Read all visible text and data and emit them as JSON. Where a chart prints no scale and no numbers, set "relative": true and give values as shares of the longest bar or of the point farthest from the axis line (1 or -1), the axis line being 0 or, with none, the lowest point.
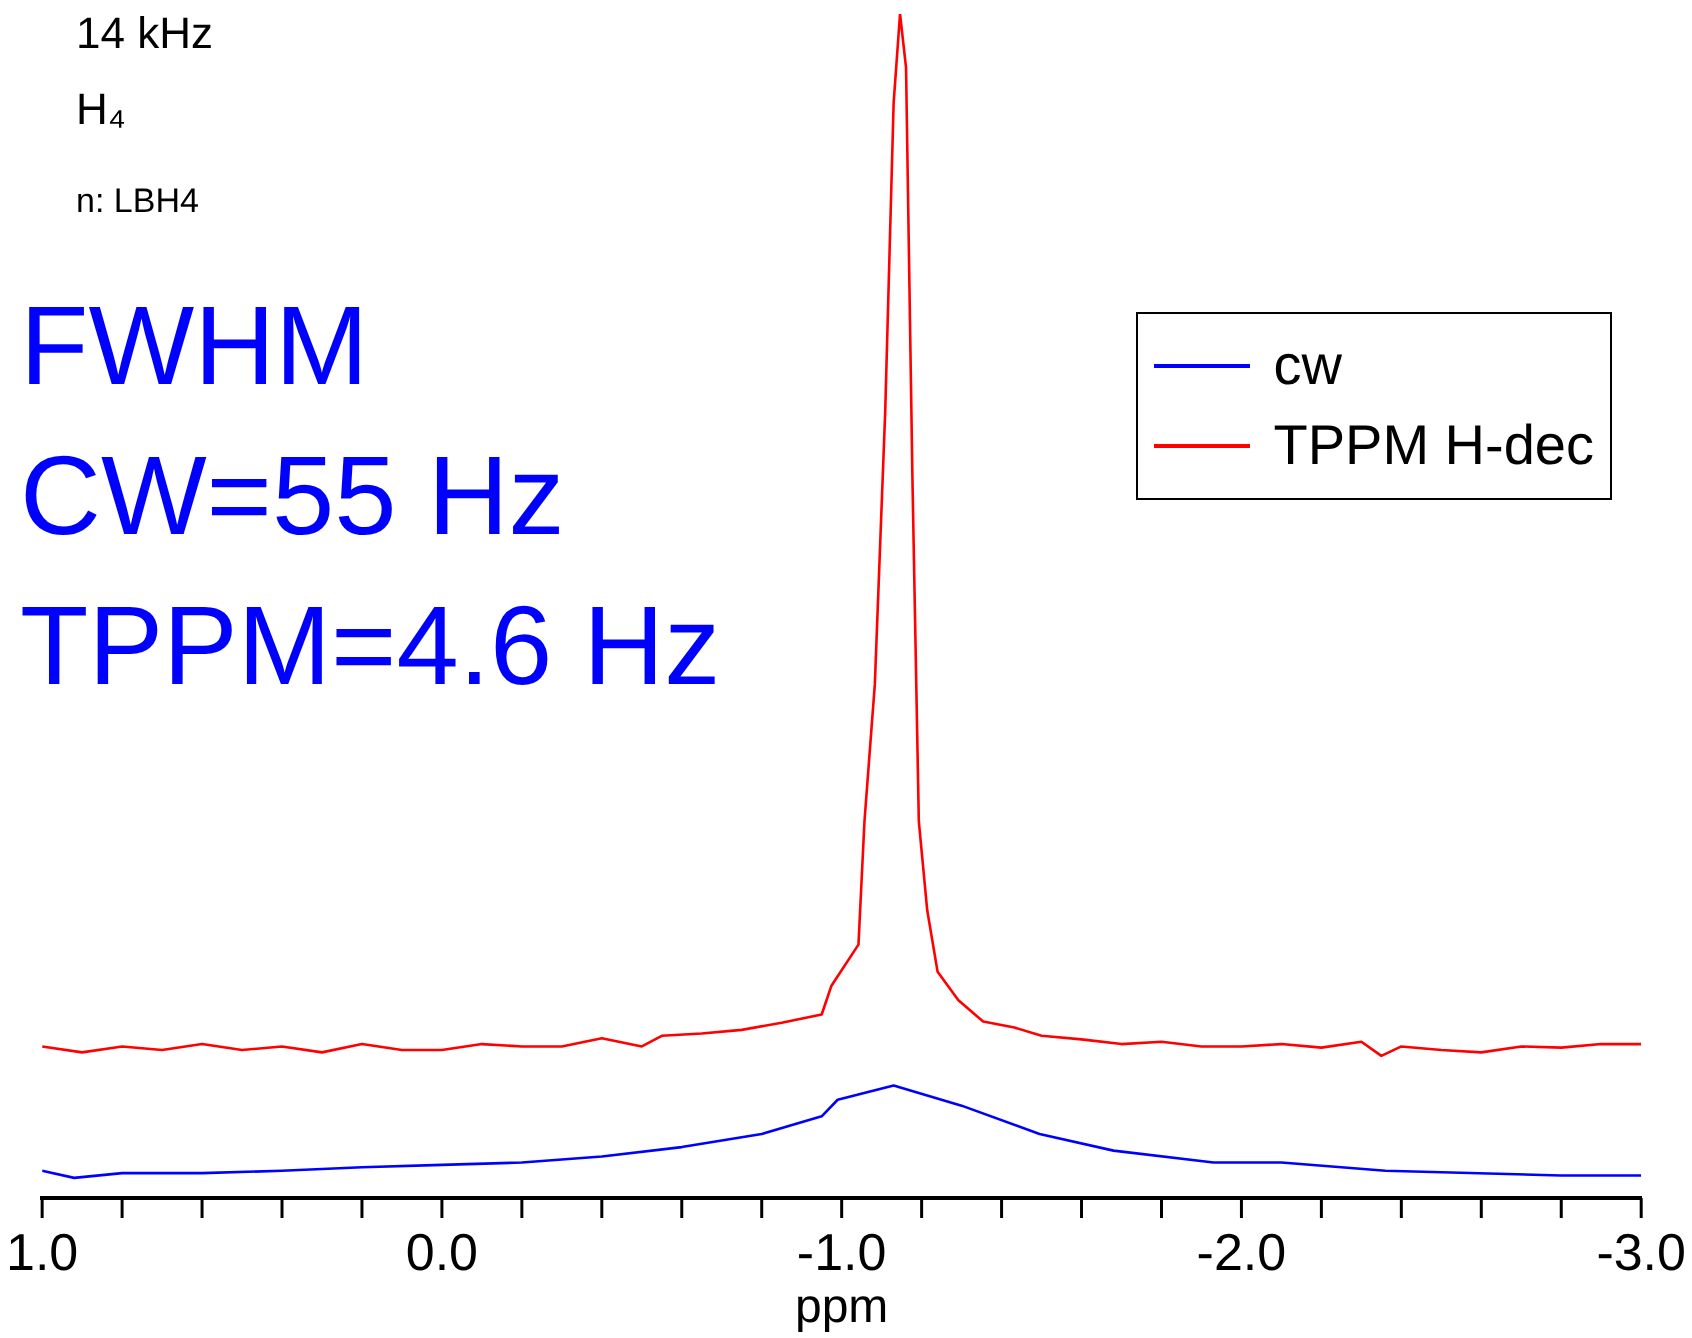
{
  "chart_data": {
    "type": "line",
    "relative": true,
    "xlabel": "ppm",
    "xlim": [
      1.0,
      -3.0
    ],
    "xticks": [
      {
        "value": 1.0,
        "label": "1.0"
      },
      {
        "value": 0.8,
        "label": null
      },
      {
        "value": 0.6,
        "label": null
      },
      {
        "value": 0.4,
        "label": null
      },
      {
        "value": 0.2,
        "label": null
      },
      {
        "value": 0.0,
        "label": "0.0"
      },
      {
        "value": -0.2,
        "label": null
      },
      {
        "value": -0.4,
        "label": null
      },
      {
        "value": -0.6,
        "label": null
      },
      {
        "value": -0.8,
        "label": null
      },
      {
        "value": -1.0,
        "label": "-1.0"
      },
      {
        "value": -1.2,
        "label": null
      },
      {
        "value": -1.4,
        "label": null
      },
      {
        "value": -1.6,
        "label": null
      },
      {
        "value": -1.8,
        "label": null
      },
      {
        "value": -2.0,
        "label": "-2.0"
      },
      {
        "value": -2.2,
        "label": null
      },
      {
        "value": -2.4,
        "label": null
      },
      {
        "value": -2.6,
        "label": null
      },
      {
        "value": -2.8,
        "label": null
      },
      {
        "value": -3.0,
        "label": "-3.0"
      }
    ],
    "legend": "top right",
    "grid": false,
    "marker": "none",
    "line_style": "solid",
    "annotations": [
      "14 kHz",
      "H₄",
      "n: LBH4",
      "FWHM",
      "CW=55 Hz",
      "TPPM=4.6 Hz"
    ],
    "series": [
      {
        "name": "cw",
        "color": "#0000ff",
        "x": [
          1.0,
          0.92,
          0.8,
          0.6,
          0.4,
          0.2,
          0.0,
          -0.2,
          -0.4,
          -0.6,
          -0.8,
          -0.95,
          -0.99,
          -1.13,
          -1.3,
          -1.495,
          -1.68,
          -1.93,
          -2.1,
          -2.36,
          -2.8,
          -3.0
        ],
        "values": [
          0.023,
          0.017,
          0.021,
          0.021,
          0.023,
          0.026,
          0.028,
          0.03,
          0.035,
          0.043,
          0.054,
          0.069,
          0.083,
          0.095,
          0.078,
          0.054,
          0.04,
          0.03,
          0.03,
          0.023,
          0.019,
          0.019
        ]
      },
      {
        "name": "TPPM H-dec",
        "color": "#ff0000",
        "x": [
          1.0,
          0.9,
          0.8,
          0.7,
          0.6,
          0.5,
          0.4,
          0.3,
          0.2,
          0.1,
          0.0,
          -0.1,
          -0.2,
          -0.3,
          -0.4,
          -0.5,
          -0.55,
          -0.65,
          -0.75,
          -0.85,
          -0.95,
          -0.974,
          -1.042,
          -1.057,
          -1.083,
          -1.109,
          -1.13,
          -1.146,
          -1.161,
          -1.177,
          -1.193,
          -1.214,
          -1.24,
          -1.292,
          -1.354,
          -1.432,
          -1.5,
          -1.6,
          -1.7,
          -1.8,
          -1.9,
          -2.0,
          -2.1,
          -2.2,
          -2.3,
          -2.35,
          -2.4,
          -2.5,
          -2.6,
          -2.7,
          -2.8,
          -2.9,
          -3.0
        ],
        "values": [
          0.128,
          0.123,
          0.128,
          0.125,
          0.13,
          0.125,
          0.128,
          0.123,
          0.13,
          0.125,
          0.125,
          0.13,
          0.128,
          0.128,
          0.135,
          0.128,
          0.137,
          0.139,
          0.142,
          0.148,
          0.155,
          0.179,
          0.214,
          0.318,
          0.434,
          0.665,
          0.925,
          1.0,
          0.955,
          0.608,
          0.318,
          0.243,
          0.191,
          0.167,
          0.149,
          0.144,
          0.137,
          0.134,
          0.13,
          0.132,
          0.128,
          0.128,
          0.13,
          0.127,
          0.132,
          0.12,
          0.128,
          0.125,
          0.123,
          0.128,
          0.127,
          0.13,
          0.13
        ]
      }
    ]
  }
}
